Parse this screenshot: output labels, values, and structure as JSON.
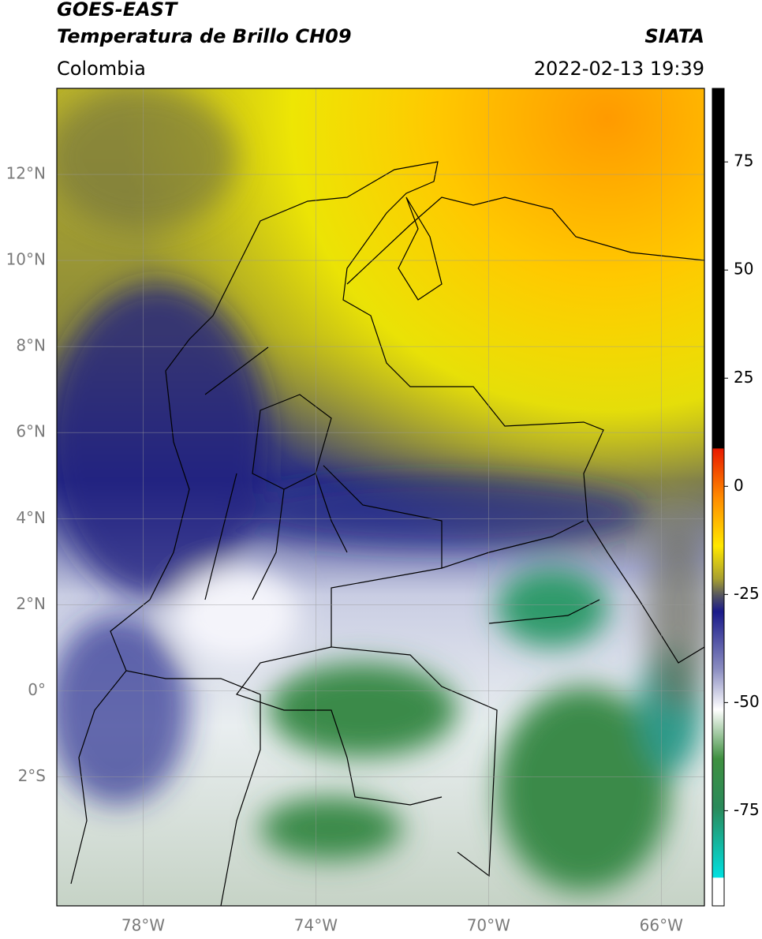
{
  "header": {
    "satellite": "GOES-EAST",
    "product": "Temperatura de Brillo CH09",
    "institution": "SIATA",
    "region": "Colombia",
    "datetime": "2022-02-13 19:39"
  },
  "map": {
    "lon_range": [
      -80,
      -65
    ],
    "lat_range": [
      -5,
      14
    ],
    "grid": true,
    "lat_ticks": [
      {
        "value": 12,
        "label": "12°N"
      },
      {
        "value": 10,
        "label": "10°N"
      },
      {
        "value": 8,
        "label": "8°N"
      },
      {
        "value": 6,
        "label": "6°N"
      },
      {
        "value": 4,
        "label": "4°N"
      },
      {
        "value": 2,
        "label": "2°N"
      },
      {
        "value": 0,
        "label": "0°"
      },
      {
        "value": -2,
        "label": "2°S"
      }
    ],
    "lon_ticks": [
      {
        "value": -78,
        "label": "78°W"
      },
      {
        "value": -74,
        "label": "74°W"
      },
      {
        "value": -70,
        "label": "70°W"
      },
      {
        "value": -66,
        "label": "66°W"
      }
    ]
  },
  "colorbar": {
    "range": [
      -97,
      92
    ],
    "ticks": [
      75,
      50,
      25,
      0,
      -25,
      -50,
      -75
    ]
  }
}
